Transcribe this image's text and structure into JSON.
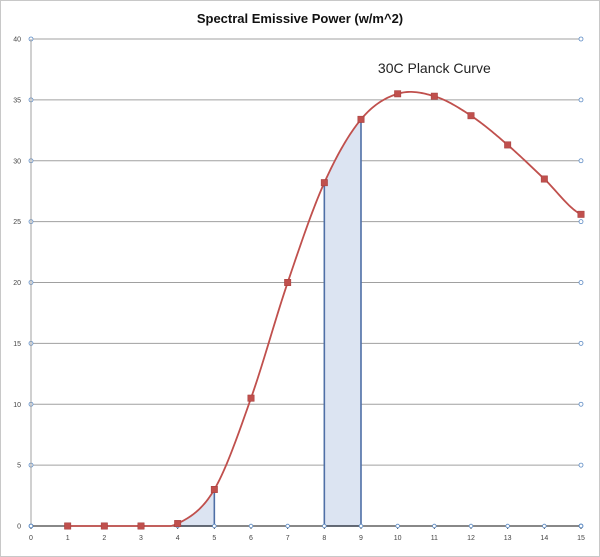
{
  "chart_data": {
    "type": "line",
    "title": "Spectral Emissive Power (w/m^2)",
    "xlabel": "",
    "ylabel": "",
    "xlim": [
      0,
      15
    ],
    "ylim": [
      0,
      40
    ],
    "x_ticks": [
      0,
      1,
      2,
      3,
      4,
      5,
      6,
      7,
      8,
      9,
      10,
      11,
      12,
      13,
      14,
      15
    ],
    "y_ticks": [
      0,
      5,
      10,
      15,
      20,
      25,
      30,
      35,
      40
    ],
    "grid": "horizontal",
    "legend": "none",
    "series": [
      {
        "x": [
          1,
          2,
          3,
          4,
          5,
          6,
          7,
          8,
          9,
          10,
          11,
          12,
          13,
          14,
          15
        ],
        "values": [
          0,
          0,
          0,
          0.2,
          3.0,
          10.5,
          20.0,
          28.2,
          33.4,
          35.5,
          35.3,
          33.7,
          31.3,
          28.5,
          25.6
        ],
        "color": "#c0504d",
        "marker": "square"
      }
    ],
    "annotations": [
      {
        "text": "30C Planck Curve",
        "x": 11.0,
        "y": 37.2
      }
    ],
    "shaded_regions": [
      {
        "x_from": 4,
        "x_to": 5,
        "fill": "#dce4f2",
        "edge": "#4f6fa6"
      },
      {
        "x_from": 8,
        "x_to": 9,
        "fill": "#dce4f2",
        "edge": "#4f6fa6"
      }
    ],
    "colors": {
      "curve": "#c0504d",
      "marker": "#c0504d",
      "grid": "#a0a0a0",
      "axis": "#404040",
      "region_fill": "#dce4f2",
      "region_edge": "#4f6fa6",
      "dot": "#5b8ac4"
    }
  }
}
